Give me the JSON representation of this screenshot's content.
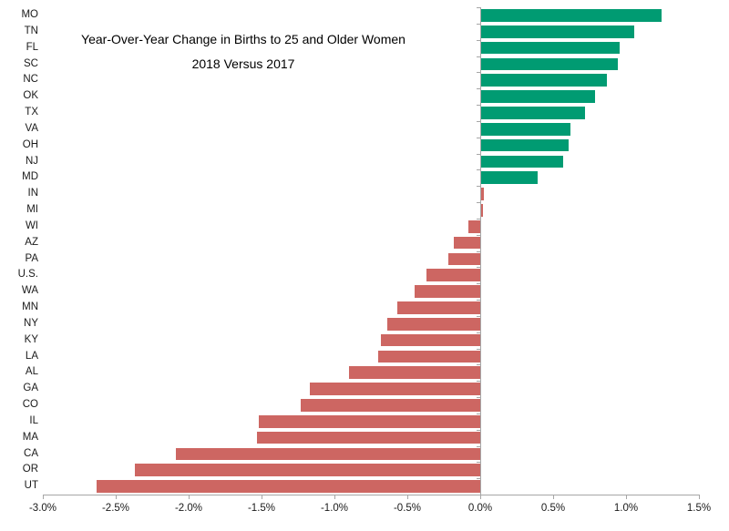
{
  "chart_data": {
    "type": "bar",
    "orientation": "horizontal",
    "title_line1": "Year-Over-Year Change in Births to 25 and Older Women",
    "title_line2": "2018 Versus 2017",
    "categories": [
      "MO",
      "TN",
      "FL",
      "SC",
      "NC",
      "OK",
      "TX",
      "VA",
      "OH",
      "NJ",
      "MD",
      "IN",
      "MI",
      "WI",
      "AZ",
      "PA",
      "U.S.",
      "WA",
      "MN",
      "NY",
      "KY",
      "LA",
      "AL",
      "GA",
      "CO",
      "IL",
      "MA",
      "CA",
      "OR",
      "UT"
    ],
    "values": [
      1.24,
      1.05,
      0.95,
      0.94,
      0.86,
      0.78,
      0.71,
      0.61,
      0.6,
      0.56,
      0.39,
      0.02,
      0.01,
      -0.08,
      -0.18,
      -0.22,
      -0.37,
      -0.45,
      -0.57,
      -0.64,
      -0.68,
      -0.7,
      -0.9,
      -1.17,
      -1.23,
      -1.52,
      -1.53,
      -2.09,
      -2.37,
      -2.63
    ],
    "bar_colors": [
      "green",
      "green",
      "green",
      "green",
      "green",
      "green",
      "green",
      "green",
      "green",
      "green",
      "green",
      "red",
      "red",
      "red",
      "red",
      "red",
      "red",
      "red",
      "red",
      "red",
      "red",
      "red",
      "red",
      "red",
      "red",
      "red",
      "red",
      "red",
      "red",
      "red"
    ],
    "colors": {
      "green": "#009b72",
      "red": "#cd6662",
      "axis": "#a6a6a6",
      "text": "#1a1a1a"
    },
    "x_ticks": [
      "-3.0%",
      "-2.5%",
      "-2.0%",
      "-1.5%",
      "-1.0%",
      "-0.5%",
      "0.0%",
      "0.5%",
      "1.0%",
      "1.5%"
    ],
    "x_tick_values": [
      -3.0,
      -2.5,
      -2.0,
      -1.5,
      -1.0,
      -0.5,
      0.0,
      0.5,
      1.0,
      1.5
    ],
    "xlim": [
      -3.0,
      1.5
    ],
    "value_unit": "%",
    "grid": "off",
    "legend": "none"
  }
}
